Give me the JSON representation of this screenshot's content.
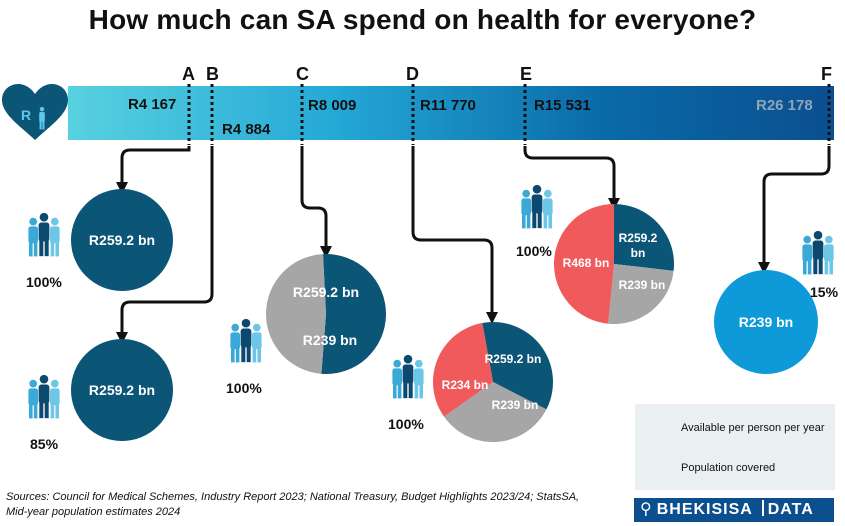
{
  "title": "How much can SA spend on health for everyone?",
  "scenarios": [
    {
      "letter": "A",
      "per_person": "R4 167"
    },
    {
      "letter": "B",
      "per_person": "R4 884"
    },
    {
      "letter": "C",
      "per_person": "R8 009"
    },
    {
      "letter": "D",
      "per_person": "R11 770"
    },
    {
      "letter": "E",
      "per_person": "R15 531"
    },
    {
      "letter": "F",
      "per_person": "R26 178"
    }
  ],
  "circles": [
    {
      "id": "A",
      "coverage": "100%",
      "slices": [
        {
          "label": "R259.2 bn",
          "value": 259.2,
          "color": "#0b5577"
        }
      ]
    },
    {
      "id": "B",
      "coverage": "85%",
      "slices": [
        {
          "label": "R259.2 bn",
          "value": 259.2,
          "color": "#0b5577"
        }
      ]
    },
    {
      "id": "C",
      "coverage": "100%",
      "slices": [
        {
          "label": "R259.2 bn",
          "value": 259.2,
          "color": "#0b5577"
        },
        {
          "label": "R239 bn",
          "value": 239,
          "color": "#a6a6a6"
        }
      ]
    },
    {
      "id": "D",
      "coverage": "100%",
      "slices": [
        {
          "label": "R259.2 bn",
          "value": 259.2,
          "color": "#0b5577"
        },
        {
          "label": "R239 bn",
          "value": 239,
          "color": "#a6a6a6"
        },
        {
          "label": "R234 bn",
          "value": 234,
          "color": "#f05a5b"
        }
      ]
    },
    {
      "id": "E",
      "coverage": "100%",
      "slices": [
        {
          "label": "R259.2 bn",
          "value": 259.2,
          "color": "#0b5577"
        },
        {
          "label": "R239 bn",
          "value": 239,
          "color": "#a6a6a6"
        },
        {
          "label": "R468 bn",
          "value": 468,
          "color": "#f05a5b"
        }
      ]
    },
    {
      "id": "F",
      "coverage": "15%",
      "slices": [
        {
          "label": "R239 bn",
          "value": 239,
          "color": "#0e9ad8"
        }
      ]
    }
  ],
  "heart_letter": "R",
  "legend": {
    "available": "Available per person per year",
    "population": "Population covered"
  },
  "sources": {
    "line1": "Sources: Council for Medical Schemes, Industry Report 2023; National Treasury, Budget Highlights 2023/24; StatsSA,",
    "line2": "Mid-year population estimates 2024"
  },
  "logo": {
    "name": "BHEKISISA",
    "sub": "DATA"
  },
  "colors": {
    "dark_blue": "#0b5577",
    "grey": "#a6a6a6",
    "red": "#f05a5b",
    "light_blue": "#0e9ad8",
    "people_blue": "#3aa9d8",
    "people_dark": "#0b4a6e"
  }
}
